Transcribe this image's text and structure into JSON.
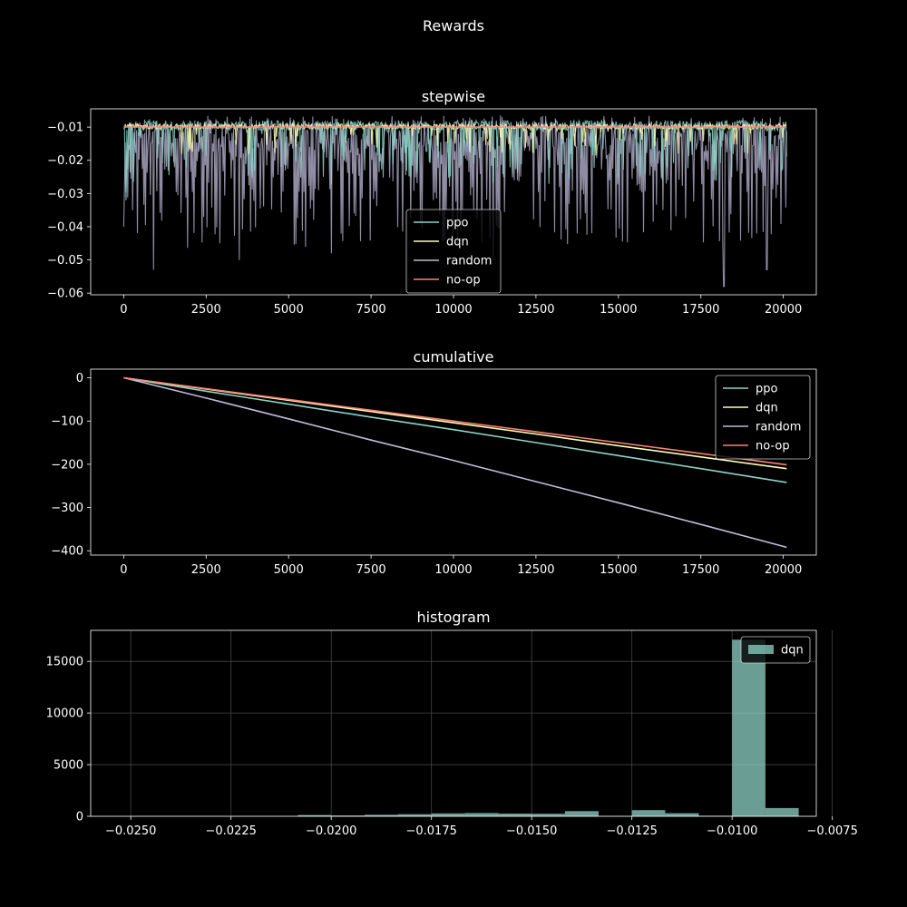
{
  "figure": {
    "title": "Rewards"
  },
  "colors": {
    "background": "#000000",
    "foreground": "#ffffff",
    "grid": "#555555",
    "ppo": "#8dd3c7",
    "dqn": "#feffb3",
    "random": "#bfbbd9",
    "noop": "#fa8174",
    "hist": "#8dd3c7"
  },
  "chart_data": [
    {
      "id": "stepwise",
      "type": "line",
      "title": "stepwise",
      "xlim": [
        -1000,
        21000
      ],
      "ylim": [
        -0.0605,
        -0.0045
      ],
      "xticks": [
        0,
        2500,
        5000,
        7500,
        10000,
        12500,
        15000,
        17500,
        20000
      ],
      "yticks": [
        -0.06,
        -0.05,
        -0.04,
        -0.03,
        -0.02,
        -0.01
      ],
      "ytick_labels": [
        "−0.06",
        "−0.05",
        "−0.04",
        "−0.03",
        "−0.02",
        "−0.01"
      ],
      "grid": false,
      "legend": {
        "placement": "lower-center",
        "entries": [
          "ppo",
          "dqn",
          "random",
          "no-op"
        ]
      },
      "series": [
        {
          "name": "ppo",
          "color_key": "ppo",
          "x_range": [
            0,
            20100
          ],
          "baseline": -0.0095,
          "min_seen": -0.032,
          "max_seen": -0.0075
        },
        {
          "name": "dqn",
          "color_key": "dqn",
          "x_range": [
            0,
            20100
          ],
          "baseline": -0.0098,
          "min_seen": -0.022,
          "max_seen": -0.0085
        },
        {
          "name": "random",
          "color_key": "random",
          "x_range": [
            0,
            20100
          ],
          "baseline": -0.0085,
          "min_seen": -0.058,
          "max_seen": -0.0065,
          "notable_dips": [
            [
              0,
              -0.04
            ],
            [
              900,
              -0.053
            ],
            [
              3500,
              -0.05
            ],
            [
              6300,
              -0.048
            ],
            [
              11200,
              -0.05
            ],
            [
              18200,
              -0.058
            ],
            [
              19500,
              -0.053
            ]
          ]
        },
        {
          "name": "no-op",
          "color_key": "noop",
          "x_range": [
            0,
            20100
          ],
          "baseline": -0.01,
          "min_seen": -0.01,
          "max_seen": -0.01
        }
      ]
    },
    {
      "id": "cumulative",
      "type": "line",
      "title": "cumulative",
      "xlim": [
        -1000,
        21000
      ],
      "ylim": [
        -410,
        20
      ],
      "xticks": [
        0,
        2500,
        5000,
        7500,
        10000,
        12500,
        15000,
        17500,
        20000
      ],
      "yticks": [
        -400,
        -300,
        -200,
        -100,
        0
      ],
      "ytick_labels": [
        "−400",
        "−300",
        "−200",
        "−100",
        "0"
      ],
      "grid": false,
      "legend": {
        "placement": "upper-right",
        "entries": [
          "ppo",
          "dqn",
          "random",
          "no-op"
        ]
      },
      "series": [
        {
          "name": "ppo",
          "color_key": "ppo",
          "x": [
            0,
            2500,
            5000,
            7500,
            10000,
            12500,
            15000,
            17500,
            20100
          ],
          "y": [
            0,
            -31,
            -61,
            -91,
            -120,
            -150,
            -180,
            -210,
            -242
          ]
        },
        {
          "name": "dqn",
          "color_key": "dqn",
          "x": [
            0,
            2500,
            5000,
            7500,
            10000,
            12500,
            15000,
            17500,
            20100
          ],
          "y": [
            0,
            -26,
            -52,
            -78,
            -104,
            -130,
            -157,
            -183,
            -210
          ]
        },
        {
          "name": "random",
          "color_key": "random",
          "x": [
            0,
            2500,
            5000,
            7500,
            10000,
            12500,
            15000,
            17500,
            20100
          ],
          "y": [
            0,
            -47,
            -95,
            -144,
            -191,
            -240,
            -289,
            -339,
            -392
          ]
        },
        {
          "name": "no-op",
          "color_key": "noop",
          "x": [
            0,
            2500,
            5000,
            7500,
            10000,
            12500,
            15000,
            17500,
            20100
          ],
          "y": [
            0,
            -25,
            -50,
            -75,
            -100,
            -125,
            -150,
            -175,
            -201
          ]
        }
      ]
    },
    {
      "id": "histogram",
      "type": "bar",
      "title": "histogram",
      "xlim": [
        -0.026,
        -0.0079
      ],
      "ylim": [
        0,
        18000
      ],
      "xticks": [
        -0.025,
        -0.0225,
        -0.02,
        -0.0175,
        -0.015,
        -0.0125,
        -0.01,
        -0.0075
      ],
      "xtick_labels": [
        "−0.0250",
        "−0.0225",
        "−0.0200",
        "−0.0175",
        "−0.0150",
        "−0.0125",
        "−0.0100",
        "−0.0075"
      ],
      "yticks": [
        0,
        5000,
        10000,
        15000
      ],
      "grid": true,
      "legend": {
        "placement": "upper-right",
        "entries": [
          "dqn"
        ]
      },
      "series": [
        {
          "name": "dqn",
          "color_key": "hist",
          "bin_edges": [
            -0.025,
            -0.02417,
            -0.02333,
            -0.0225,
            -0.02167,
            -0.02083,
            -0.02,
            -0.01917,
            -0.01833,
            -0.0175,
            -0.01667,
            -0.01583,
            -0.015,
            -0.01417,
            -0.01333,
            -0.0125,
            -0.01167,
            -0.01083,
            -0.01,
            -0.00917
          ],
          "counts": [
            10,
            10,
            10,
            15,
            20,
            120,
            80,
            150,
            200,
            280,
            320,
            260,
            250,
            500,
            30,
            600,
            300,
            50,
            17100,
            800
          ]
        }
      ]
    }
  ]
}
